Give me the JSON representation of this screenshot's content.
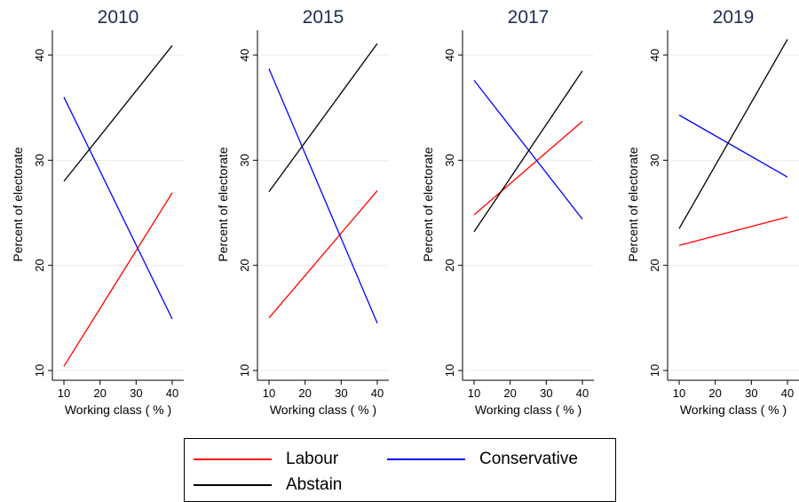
{
  "chart_data": [
    {
      "type": "line",
      "title": "2010",
      "xlabel": "Working class ( % )",
      "ylabel": "Percent of electorate",
      "xlim": [
        10,
        40
      ],
      "ylim": [
        10,
        40
      ],
      "xticks": [
        10,
        20,
        30,
        40
      ],
      "yticks": [
        10,
        20,
        30,
        40
      ],
      "grid": true,
      "series": [
        {
          "name": "Labour",
          "color": "#ff0000",
          "x": [
            10,
            40
          ],
          "y": [
            10.4,
            26.9
          ]
        },
        {
          "name": "Conservative",
          "color": "#0000ff",
          "x": [
            10,
            40
          ],
          "y": [
            36.0,
            14.9
          ]
        },
        {
          "name": "Abstain",
          "color": "#000000",
          "x": [
            10,
            40
          ],
          "y": [
            28.0,
            40.9
          ]
        }
      ]
    },
    {
      "type": "line",
      "title": "2015",
      "xlabel": "Working class ( % )",
      "ylabel": "Percent of electorate",
      "xlim": [
        10,
        40
      ],
      "ylim": [
        10,
        40
      ],
      "xticks": [
        10,
        20,
        30,
        40
      ],
      "yticks": [
        10,
        20,
        30,
        40
      ],
      "grid": true,
      "series": [
        {
          "name": "Labour",
          "color": "#ff0000",
          "x": [
            10,
            40
          ],
          "y": [
            15.0,
            27.1
          ]
        },
        {
          "name": "Conservative",
          "color": "#0000ff",
          "x": [
            10,
            40
          ],
          "y": [
            38.7,
            14.5
          ]
        },
        {
          "name": "Abstain",
          "color": "#000000",
          "x": [
            10,
            40
          ],
          "y": [
            27.0,
            41.1
          ]
        }
      ]
    },
    {
      "type": "line",
      "title": "2017",
      "xlabel": "Working class ( % )",
      "ylabel": "Percent of electorate",
      "xlim": [
        10,
        40
      ],
      "ylim": [
        10,
        40
      ],
      "xticks": [
        10,
        20,
        30,
        40
      ],
      "yticks": [
        10,
        20,
        30,
        40
      ],
      "grid": true,
      "series": [
        {
          "name": "Labour",
          "color": "#ff0000",
          "x": [
            10,
            40
          ],
          "y": [
            24.8,
            33.7
          ]
        },
        {
          "name": "Conservative",
          "color": "#0000ff",
          "x": [
            10,
            40
          ],
          "y": [
            37.6,
            24.4
          ]
        },
        {
          "name": "Abstain",
          "color": "#000000",
          "x": [
            10,
            40
          ],
          "y": [
            23.2,
            38.5
          ]
        }
      ]
    },
    {
      "type": "line",
      "title": "2019",
      "xlabel": "Working class ( % )",
      "ylabel": "Percent of electorate",
      "xlim": [
        10,
        40
      ],
      "ylim": [
        10,
        40
      ],
      "xticks": [
        10,
        20,
        30,
        40
      ],
      "yticks": [
        10,
        20,
        30,
        40
      ],
      "grid": true,
      "series": [
        {
          "name": "Labour",
          "color": "#ff0000",
          "x": [
            10,
            40
          ],
          "y": [
            21.9,
            24.6
          ]
        },
        {
          "name": "Conservative",
          "color": "#0000ff",
          "x": [
            10,
            40
          ],
          "y": [
            34.3,
            28.4
          ]
        },
        {
          "name": "Abstain",
          "color": "#000000",
          "x": [
            10,
            40
          ],
          "y": [
            23.5,
            41.5
          ]
        }
      ]
    }
  ],
  "legend": {
    "items": [
      {
        "label": "Labour",
        "color": "#ff0000"
      },
      {
        "label": "Conservative",
        "color": "#0000ff"
      },
      {
        "label": "Abstain",
        "color": "#000000"
      }
    ]
  }
}
